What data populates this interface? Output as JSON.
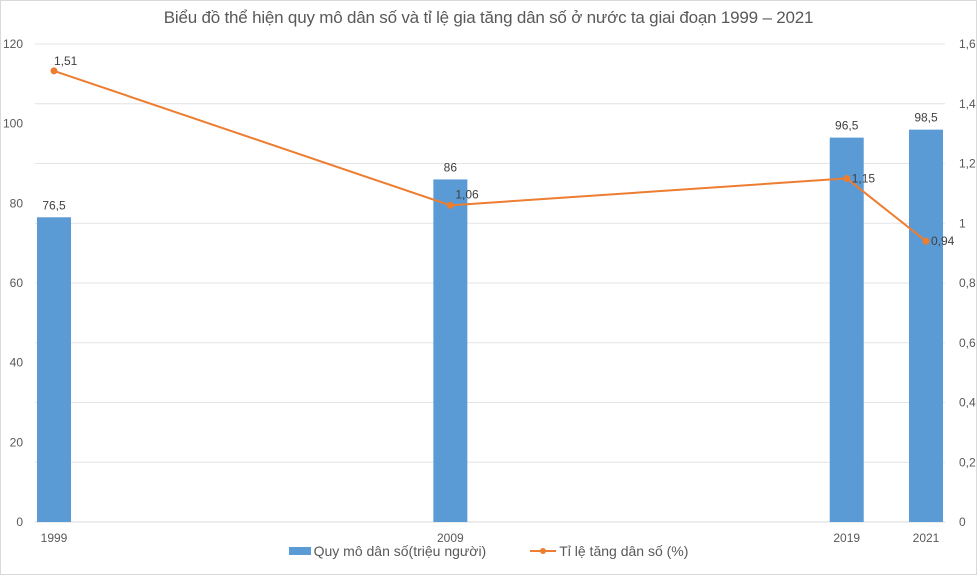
{
  "chart_data": {
    "type": "bar+line",
    "title": "Biểu đồ thể hiện quy mô dân số và tỉ lệ gia tăng dân số ở nước ta giai đoạn 1999 – 2021",
    "categories": [
      "1999",
      "2009",
      "2019",
      "2021"
    ],
    "x_numeric": [
      1999,
      2009,
      2019,
      2021
    ],
    "series": [
      {
        "name": "Quy mô dân số(triệu người)",
        "type": "bar",
        "axis": "left",
        "color": "#5B9BD5",
        "values": [
          76.5,
          86,
          96.5,
          98.5
        ],
        "labels": [
          "76,5",
          "86",
          "96,5",
          "98,5"
        ]
      },
      {
        "name": "Tỉ lệ tăng dân số (%)",
        "type": "line",
        "axis": "right",
        "color": "#ED7D31",
        "values": [
          1.51,
          1.06,
          1.15,
          0.94
        ],
        "labels": [
          "1,51",
          "1,06",
          "1,15",
          "0,94"
        ]
      }
    ],
    "xlabel": "",
    "ylabel_left": "",
    "ylabel_right": "",
    "ylim_left": [
      0,
      120
    ],
    "ylim_right": [
      0,
      1.6
    ],
    "left_ticks": [
      "0",
      "20",
      "40",
      "60",
      "80",
      "100",
      "120"
    ],
    "right_ticks": [
      "0",
      "0,2",
      "0,4",
      "0,6",
      "0,8",
      "1",
      "1,2",
      "1,4",
      "1,6"
    ],
    "grid": true,
    "legend_position": "bottom"
  }
}
